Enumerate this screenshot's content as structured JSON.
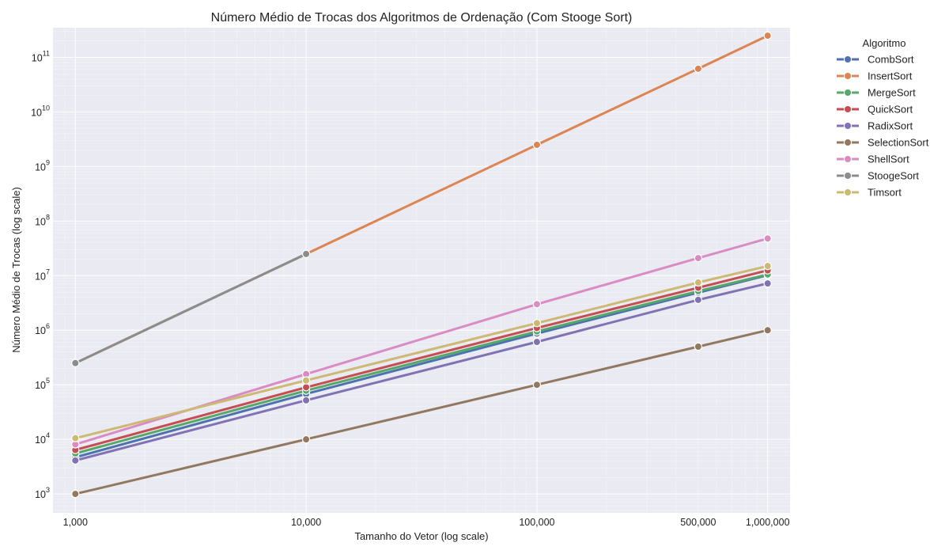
{
  "chart_data": {
    "type": "line",
    "title": "Número Médio de Trocas dos Algoritmos de Ordenação (Com Stooge Sort)",
    "xlabel": "Tamanho do Vetor (log scale)",
    "ylabel": "Número Médio de Trocas (log scale)",
    "x_scale": "log",
    "y_scale": "log",
    "xlim": [
      800,
      1250000
    ],
    "ylim": [
      450,
      350000000000
    ],
    "grid": true,
    "legend_title": "Algoritmo",
    "legend_position": "outside-right",
    "x_ticks": [
      1000,
      10000,
      100000,
      500000,
      1000000
    ],
    "x_tick_labels": [
      "1,000",
      "10,000",
      "100,000",
      "500,000",
      "1,000,000"
    ],
    "y_ticks": [
      1000,
      10000,
      100000,
      1000000,
      10000000,
      100000000,
      1000000000,
      10000000000,
      100000000000
    ],
    "y_tick_exponents": [
      "3",
      "4",
      "5",
      "6",
      "7",
      "8",
      "9",
      "10",
      "11"
    ],
    "y_tick_base": "10",
    "series": [
      {
        "name": "CombSort",
        "color": "#4c72b0",
        "x": [
          1000,
          10000,
          100000,
          500000,
          1000000
        ],
        "values": [
          4700,
          68000,
          870000,
          4900000,
          10200000
        ]
      },
      {
        "name": "InsertSort",
        "color": "#dd8452",
        "x": [
          1000,
          10000,
          100000,
          500000,
          1000000
        ],
        "values": [
          250000,
          25000000,
          2500000000,
          62000000000,
          250000000000
        ]
      },
      {
        "name": "MergeSort",
        "color": "#55a868",
        "x": [
          1000,
          10000,
          100000,
          500000,
          1000000
        ],
        "values": [
          5500,
          78000,
          950000,
          5200000,
          10500000
        ]
      },
      {
        "name": "QuickSort",
        "color": "#c44e52",
        "x": [
          1000,
          10000,
          100000,
          500000,
          1000000
        ],
        "values": [
          6400,
          90000,
          1100000,
          6000000,
          12500000
        ]
      },
      {
        "name": "RadixSort",
        "color": "#8172b3",
        "x": [
          1000,
          10000,
          100000,
          500000,
          1000000
        ],
        "values": [
          4100,
          52000,
          610000,
          3600000,
          7200000
        ]
      },
      {
        "name": "SelectionSort",
        "color": "#937860",
        "x": [
          1000,
          10000,
          100000,
          500000,
          1000000
        ],
        "values": [
          1000,
          10000,
          100000,
          500000,
          1000000
        ]
      },
      {
        "name": "ShellSort",
        "color": "#da8bc3",
        "x": [
          1000,
          10000,
          100000,
          500000,
          1000000
        ],
        "values": [
          8100,
          157000,
          3000000,
          21000000,
          48000000
        ]
      },
      {
        "name": "StoogeSort",
        "color": "#8c8c8c",
        "x": [
          1000,
          10000
        ],
        "values": [
          250000,
          25000000
        ]
      },
      {
        "name": "Timsort",
        "color": "#ccb974",
        "x": [
          1000,
          10000,
          100000,
          500000,
          1000000
        ],
        "values": [
          10500,
          120000,
          1350000,
          7500000,
          15000000
        ]
      }
    ]
  }
}
